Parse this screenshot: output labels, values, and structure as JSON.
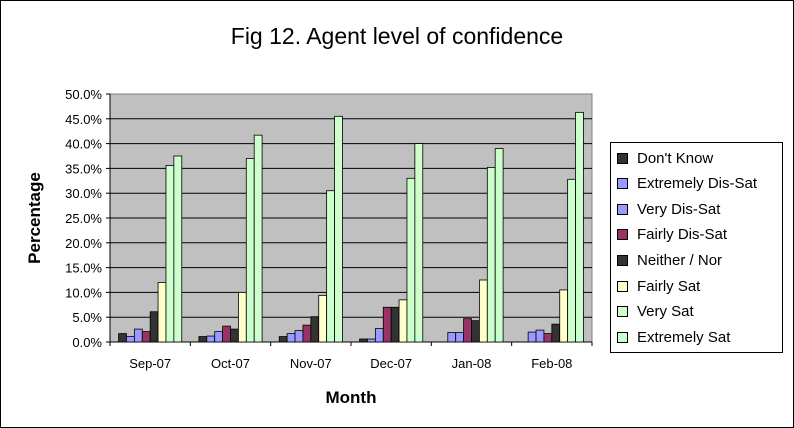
{
  "chart_data": {
    "type": "bar",
    "title": "Fig 12. Agent level of confidence",
    "xlabel": "Month",
    "ylabel": "Percentage",
    "ylim": [
      0,
      0.5
    ],
    "yticks": [
      "0.0%",
      "5.0%",
      "10.0%",
      "15.0%",
      "20.0%",
      "25.0%",
      "30.0%",
      "35.0%",
      "40.0%",
      "45.0%",
      "50.0%"
    ],
    "grid": true,
    "legend_position": "right",
    "plot_background": "#c0c0c0",
    "categories": [
      "Sep-07",
      "Oct-07",
      "Nov-07",
      "Dec-07",
      "Jan-08",
      "Feb-08"
    ],
    "series": [
      {
        "name": "Don't Know",
        "color": "#333333",
        "values": [
          0.017,
          0.011,
          0.011,
          0.006,
          0.0,
          0.0
        ]
      },
      {
        "name": "Extremely Dis-Sat",
        "color": "#9999ff",
        "values": [
          0.011,
          0.012,
          0.017,
          0.006,
          0.019,
          0.02
        ]
      },
      {
        "name": "Very Dis-Sat",
        "color": "#9999ff",
        "values": [
          0.026,
          0.021,
          0.023,
          0.027,
          0.019,
          0.024
        ]
      },
      {
        "name": "Fairly Dis-Sat",
        "color": "#993366",
        "values": [
          0.021,
          0.032,
          0.034,
          0.07,
          0.047,
          0.017
        ]
      },
      {
        "name": "Neither / Nor",
        "color": "#333333",
        "values": [
          0.061,
          0.026,
          0.051,
          0.07,
          0.043,
          0.036
        ]
      },
      {
        "name": "Fairly Sat",
        "color": "#ffffcc",
        "values": [
          0.12,
          0.1,
          0.094,
          0.085,
          0.125,
          0.105
        ]
      },
      {
        "name": "Very Sat",
        "color": "#ccffcc",
        "values": [
          0.356,
          0.37,
          0.305,
          0.33,
          0.352,
          0.328
        ]
      },
      {
        "name": "Extremely Sat",
        "color": "#ccffcc",
        "values": [
          0.375,
          0.417,
          0.455,
          0.4,
          0.39,
          0.463
        ]
      }
    ]
  }
}
